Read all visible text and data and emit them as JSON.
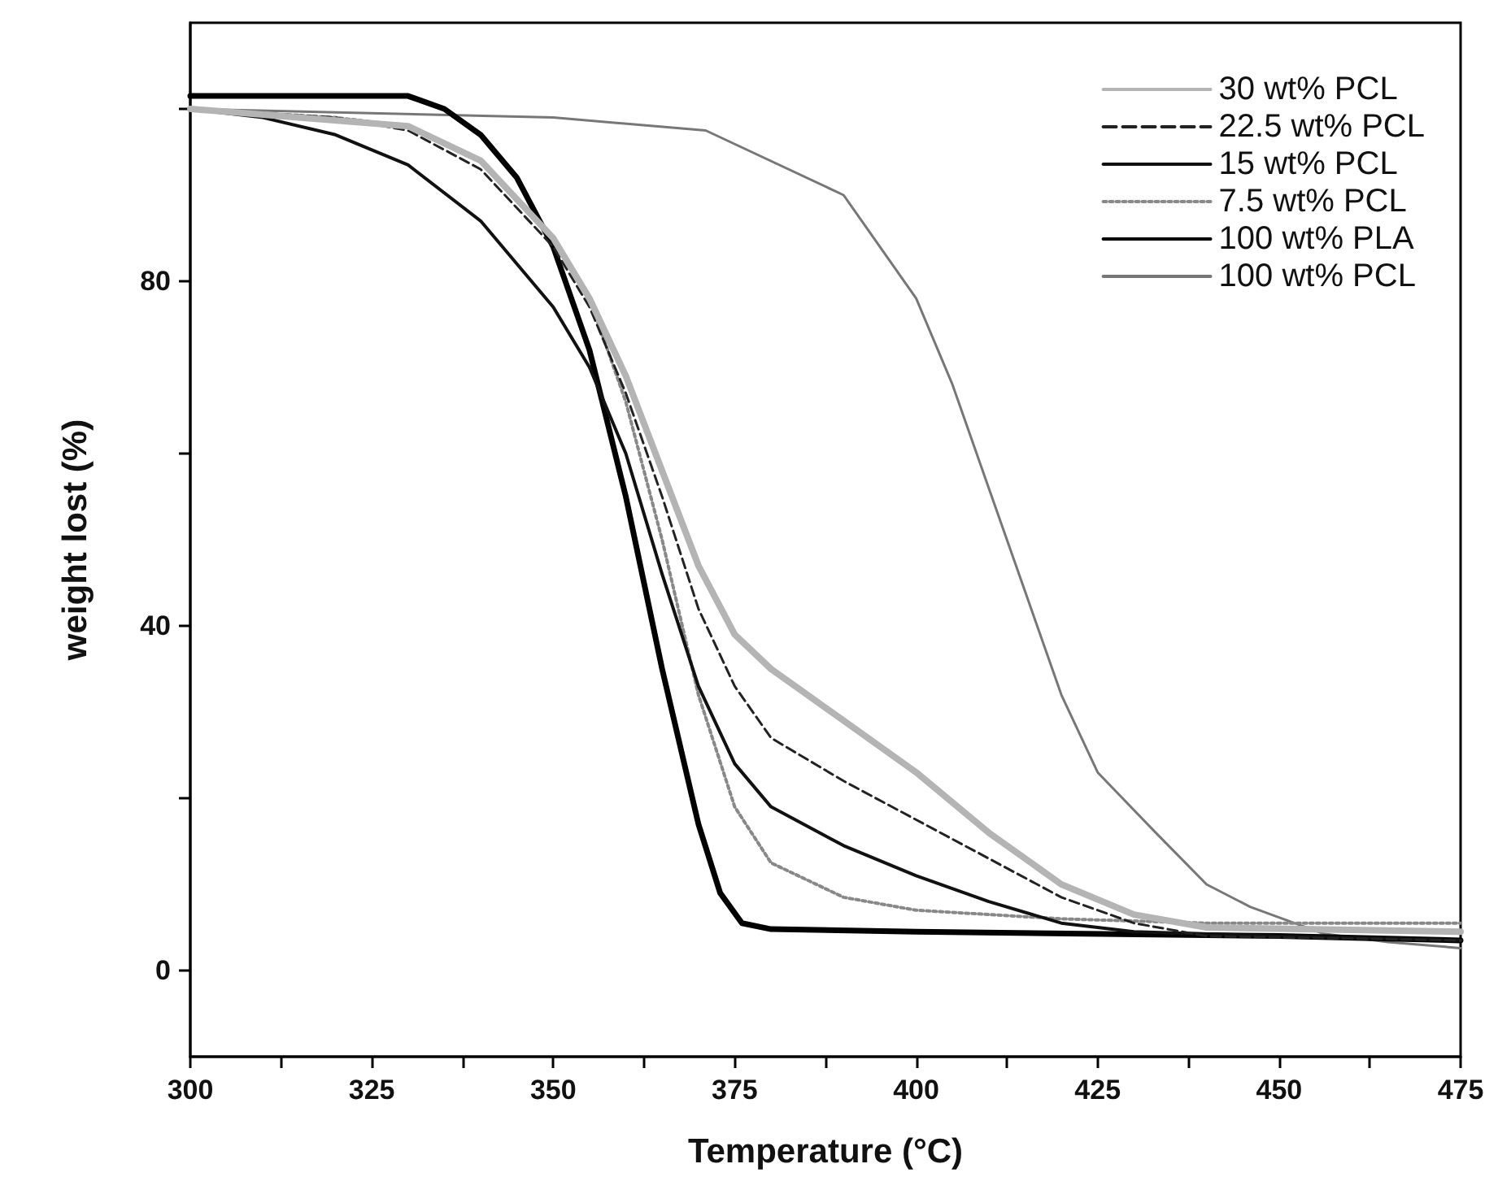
{
  "chart_data": {
    "type": "line",
    "xlabel": "Temperature (°C)",
    "ylabel": "weight lost (%)",
    "xlim": [
      300,
      475
    ],
    "ylim": [
      -10,
      110
    ],
    "xticks": [
      300,
      {
        "value": 312.5,
        "label": null
      },
      325,
      {
        "value": 337.5,
        "label": null
      },
      350,
      {
        "value": 362.5,
        "label": null
      },
      375,
      {
        "value": 387.5,
        "label": null
      },
      400,
      {
        "value": 412.5,
        "label": null
      },
      425,
      {
        "value": 437.5,
        "label": null
      },
      450,
      {
        "value": 462.5,
        "label": null
      },
      475
    ],
    "yticks": [
      0,
      {
        "value": 20,
        "label": null
      },
      40,
      {
        "value": 60,
        "label": null
      },
      80,
      {
        "value": 100,
        "label": null
      }
    ],
    "grid": false,
    "legend": "top right",
    "marker": "none",
    "series": [
      {
        "name": "30 wt% PCL",
        "color": "#b4b4b4",
        "line_style": "solid",
        "x": [
          300,
          330,
          340,
          350,
          355,
          360,
          365,
          370,
          375,
          380,
          385,
          390,
          400,
          410,
          420,
          430,
          440,
          475
        ],
        "values": [
          100,
          98,
          94,
          85,
          78,
          69,
          58,
          47,
          39,
          35,
          32,
          29,
          23,
          16,
          10,
          6.5,
          5,
          4.5
        ]
      },
      {
        "name": "22.5 wt% PCL",
        "color": "#222222",
        "line_style": "dashed",
        "x": [
          300,
          320,
          330,
          340,
          350,
          355,
          360,
          365,
          370,
          375,
          380,
          390,
          400,
          410,
          420,
          430,
          440,
          475
        ],
        "values": [
          100,
          99,
          97.5,
          93,
          84,
          77,
          67,
          55,
          42,
          33,
          27,
          22,
          17.5,
          13,
          8.5,
          5.5,
          4,
          3.5
        ]
      },
      {
        "name": "15 wt% PCL",
        "color": "#111111",
        "line_style": "solid",
        "x": [
          300,
          310,
          320,
          330,
          340,
          350,
          355,
          360,
          365,
          370,
          375,
          380,
          390,
          400,
          410,
          420,
          430,
          450,
          475
        ],
        "values": [
          100,
          99,
          97,
          93.5,
          87,
          77,
          70,
          60,
          46,
          33,
          24,
          19,
          14.5,
          11,
          8,
          5.5,
          4.5,
          4,
          3.5
        ]
      },
      {
        "name": "7.5 wt% PCL",
        "color": "#888888",
        "line_style": "dotted",
        "x": [
          300,
          320,
          330,
          340,
          350,
          355,
          360,
          365,
          370,
          375,
          380,
          390,
          400,
          420,
          440,
          475
        ],
        "values": [
          100,
          99,
          98,
          94,
          85,
          78,
          66,
          50,
          32,
          19,
          12.5,
          8.5,
          7,
          6,
          5.5,
          5.5
        ]
      },
      {
        "name": "100 wt% PLA",
        "color": "#000000",
        "line_style": "solid",
        "x": [
          300,
          330,
          335,
          340,
          345,
          350,
          355,
          360,
          365,
          370,
          373,
          376,
          380,
          400,
          450,
          475
        ],
        "values": [
          101.5,
          101.5,
          100,
          97,
          92,
          84,
          72,
          55,
          35,
          17,
          9,
          5.5,
          4.8,
          4.5,
          4,
          3.5
        ]
      },
      {
        "name": "100 wt% PCL",
        "color": "#777777",
        "line_style": "solid",
        "x": [
          300,
          350,
          371,
          390,
          400,
          405,
          410,
          415,
          420,
          425,
          433,
          440,
          446,
          456,
          465,
          475
        ],
        "values": [
          100,
          99,
          97.5,
          90,
          78,
          68,
          56,
          44,
          32,
          23,
          16,
          10,
          7.4,
          4.3,
          3.3,
          2.6
        ]
      }
    ]
  }
}
